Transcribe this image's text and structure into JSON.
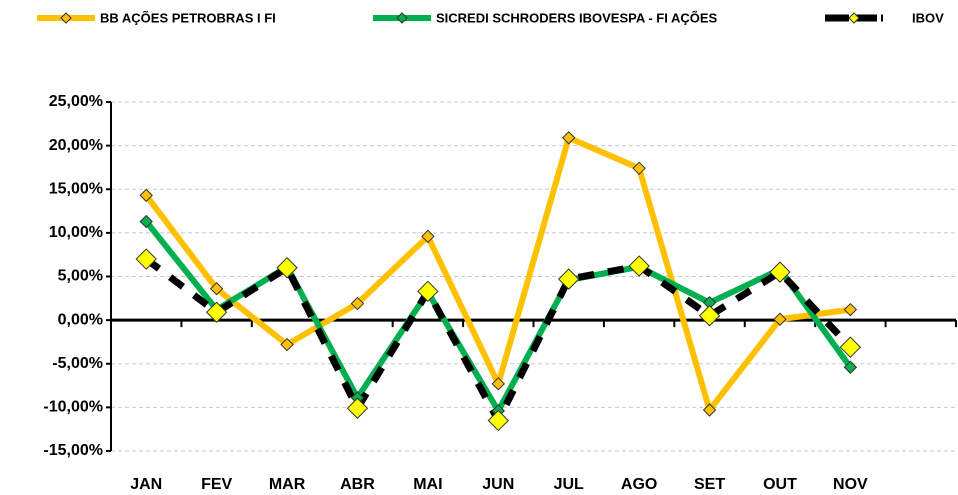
{
  "chart_data": {
    "type": "line",
    "categories": [
      "JAN",
      "FEV",
      "MAR",
      "ABR",
      "MAI",
      "JUN",
      "JUL",
      "AGO",
      "SET",
      "OUT",
      "NOV",
      null
    ],
    "series": [
      {
        "name": "BB AÇÕES PETROBRAS I FI",
        "color": "#FFC000",
        "marker_color": "#FFC000",
        "values": [
          14.3,
          3.6,
          -2.8,
          1.9,
          9.6,
          -7.3,
          20.9,
          17.4,
          -10.3,
          0.1,
          1.2,
          null
        ]
      },
      {
        "name": "SICREDI SCHRODERS IBOVESPA - FI AÇÕES",
        "color": "#00B050",
        "marker_color": "#00B050",
        "values": [
          11.3,
          1.2,
          6.1,
          -8.9,
          3.2,
          -10.4,
          4.6,
          6.1,
          2.0,
          5.8,
          -5.4,
          null
        ]
      },
      {
        "name": "IBOV",
        "color": "#000000",
        "marker_color": "#FFFF00",
        "values": [
          7.0,
          0.9,
          6.0,
          -10.1,
          3.3,
          -11.5,
          4.7,
          6.2,
          0.5,
          5.5,
          -3.1,
          null
        ]
      }
    ],
    "ylim": [
      -15,
      25
    ],
    "yticks": [
      {
        "value": -15,
        "label": "-15,00%"
      },
      {
        "value": -10,
        "label": "-10,00%"
      },
      {
        "value": -5,
        "label": "-5,00%"
      },
      {
        "value": 0,
        "label": "0,00%"
      },
      {
        "value": 5,
        "label": "5,00%"
      },
      {
        "value": 10,
        "label": "10,00%"
      },
      {
        "value": 15,
        "label": "15,00%"
      },
      {
        "value": 20,
        "label": "20,00%"
      },
      {
        "value": 25,
        "label": "25,00%"
      }
    ],
    "grid": true,
    "legend": "top"
  }
}
